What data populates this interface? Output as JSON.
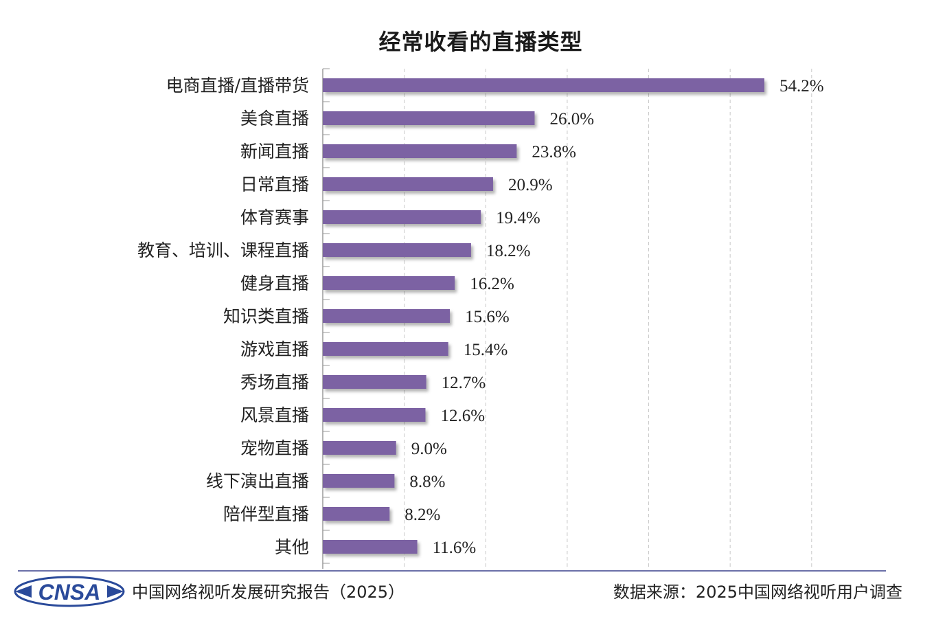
{
  "chart_data": {
    "type": "bar",
    "orientation": "horizontal",
    "title": "经常收看的直播类型",
    "categories": [
      "电商直播/直播带货",
      "美食直播",
      "新闻直播",
      "日常直播",
      "体育赛事",
      "教育、培训、课程直播",
      "健身直播",
      "知识类直播",
      "游戏直播",
      "秀场直播",
      "风景直播",
      "宠物直播",
      "线下演出直播",
      "陪伴型直播",
      "其他"
    ],
    "values": [
      54.2,
      26.0,
      23.8,
      20.9,
      19.4,
      18.2,
      16.2,
      15.6,
      15.4,
      12.7,
      12.6,
      9.0,
      8.8,
      8.2,
      11.6
    ],
    "value_labels": [
      "54.2%",
      "26.0%",
      "23.8%",
      "20.9%",
      "19.4%",
      "18.2%",
      "16.2%",
      "15.6%",
      "15.4%",
      "12.7%",
      "12.6%",
      "9.0%",
      "8.8%",
      "8.2%",
      "11.6%"
    ],
    "xlim": [
      0,
      60
    ],
    "grid": true,
    "grid_style": "dashed-vertical",
    "legend": "none",
    "bar_color": "#7b62a3"
  },
  "footer": {
    "logo_text": "CNSA",
    "report_name": "中国网络视听发展研究报告（2025）",
    "source": "数据来源：2025中国网络视听用户调查"
  },
  "colors": {
    "bar": "#7b62a3",
    "grid": "#c8c8c8",
    "rule": "#6a6fa8",
    "logo": "#2a4a9a"
  }
}
